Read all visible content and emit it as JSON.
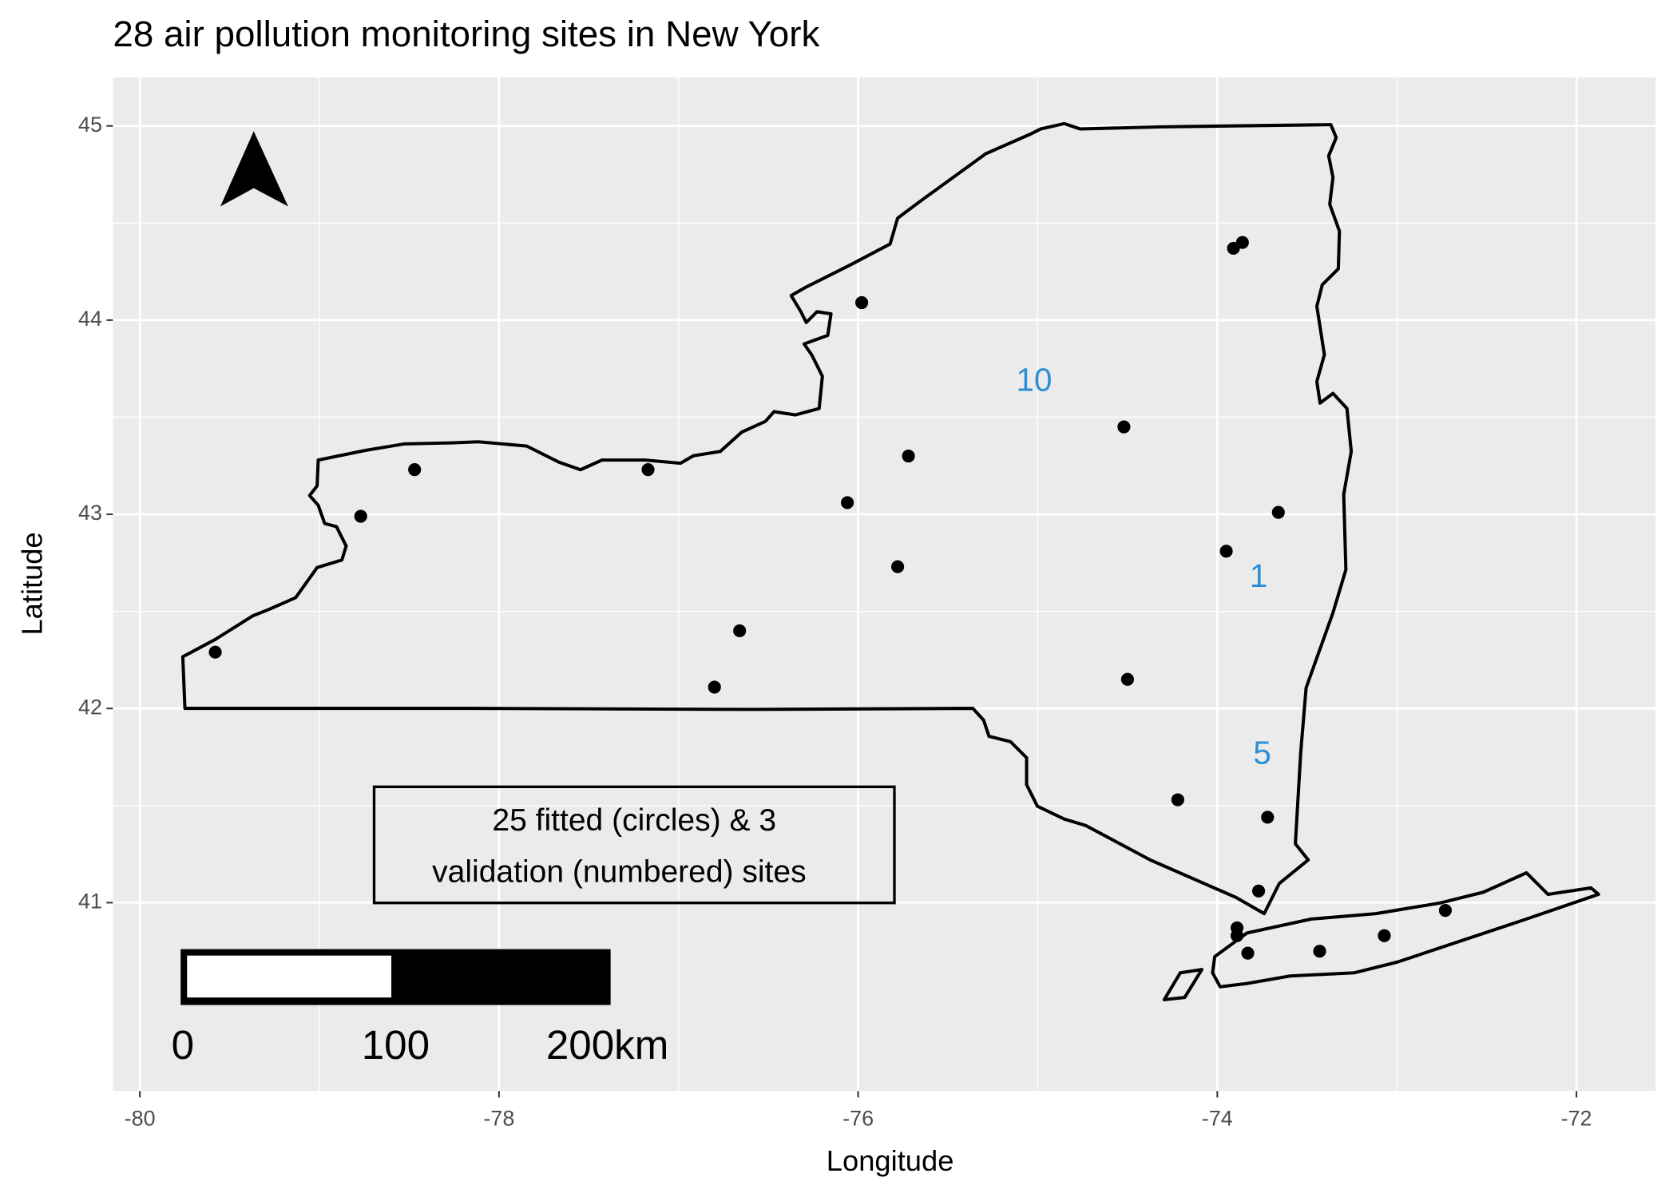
{
  "chart_data": {
    "type": "scatter",
    "title": "28 air pollution monitoring sites in New York",
    "x_label": "Longitude",
    "y_label": "Latitude",
    "xlim": [
      -80.15,
      -71.56
    ],
    "ylim": [
      40.03,
      45.25
    ],
    "xticks": [
      -80,
      -78,
      -76,
      -74,
      -72
    ],
    "yticks": [
      41,
      42,
      43,
      44,
      45
    ],
    "grid": true,
    "color": "#000000",
    "x": [
      -73.86,
      -73.91,
      -75.98,
      -74.52,
      -75.72,
      -78.47,
      -77.17,
      -78.77,
      -76.06,
      -73.66,
      -73.95,
      -75.78,
      -76.66,
      -79.58,
      -76.8,
      -74.5,
      -74.22,
      -73.72,
      -73.77,
      -73.89,
      -73.89,
      -73.83,
      -73.43,
      -73.07,
      -72.73
    ],
    "y": [
      44.4,
      44.37,
      44.09,
      43.45,
      43.3,
      43.23,
      43.23,
      42.99,
      43.06,
      43.01,
      42.81,
      42.73,
      42.4,
      42.29,
      42.11,
      42.15,
      41.53,
      41.44,
      41.06,
      40.87,
      40.83,
      40.74,
      40.75,
      40.83,
      40.96
    ],
    "validation_sites": {
      "color": "#2b8fd6",
      "labels": [
        "10",
        "1",
        "5"
      ],
      "x": [
        -75.02,
        -73.77,
        -73.75
      ],
      "y": [
        43.68,
        42.67,
        41.76
      ]
    },
    "annotation": [
      "25 fitted (circles) & 3",
      "validation (numbered) sites"
    ],
    "scale_bar_labels": [
      "0",
      "100",
      "200km"
    ]
  }
}
